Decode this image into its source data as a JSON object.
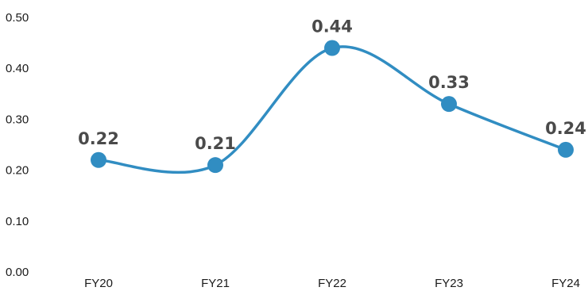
{
  "chart_data": {
    "type": "line",
    "categories": [
      "FY20",
      "FY21",
      "FY22",
      "FY23",
      "FY24"
    ],
    "values": [
      0.22,
      0.21,
      0.44,
      0.33,
      0.24
    ],
    "data_labels": [
      "0.22",
      "0.21",
      "0.44",
      "0.33",
      "0.24"
    ],
    "y_ticks": [
      "0.00",
      "0.10",
      "0.20",
      "0.30",
      "0.40",
      "0.50"
    ],
    "ylim": [
      0,
      0.5
    ],
    "title": "",
    "xlabel": "",
    "ylabel": "",
    "grid": false,
    "legend": "none",
    "line_color": "#318dc2",
    "label_color": "#4a4a4a"
  }
}
